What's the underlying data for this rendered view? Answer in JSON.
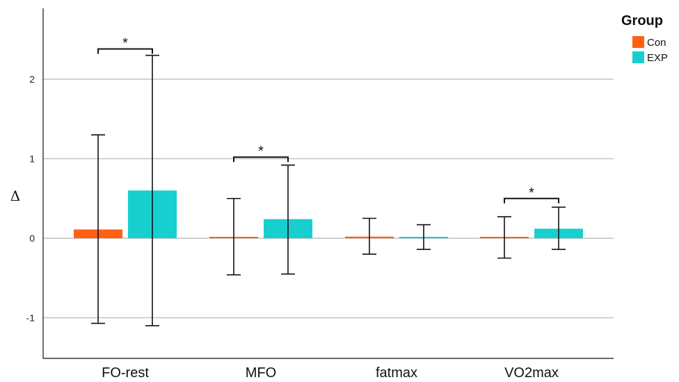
{
  "chart_data": {
    "type": "bar",
    "title": "",
    "xlabel": "",
    "ylabel": "Δ",
    "categories": [
      "FO-rest",
      "MFO",
      "fatmax",
      "VO2max"
    ],
    "ylim": [
      -1.5,
      2.85
    ],
    "yticks": [
      -1,
      0,
      1,
      2
    ],
    "grid": true,
    "legend": {
      "title": "Group",
      "position": "top-right"
    },
    "series": [
      {
        "name": "Con",
        "color": "#ff6016",
        "values": [
          0.11,
          0.01,
          0.02,
          0.0
        ],
        "err_low": [
          -1.07,
          -0.46,
          -0.2,
          -0.25
        ],
        "err_high": [
          1.3,
          0.5,
          0.25,
          0.27
        ]
      },
      {
        "name": "EXP",
        "color": "#17cfcf",
        "values": [
          0.6,
          0.24,
          0.01,
          0.12
        ],
        "err_low": [
          -1.1,
          -0.45,
          -0.14,
          -0.14
        ],
        "err_high": [
          2.3,
          0.92,
          0.17,
          0.39
        ]
      }
    ],
    "annotations": [
      {
        "category": "FO-rest",
        "label": "*",
        "y": 2.38
      },
      {
        "category": "MFO",
        "label": "*",
        "y": 1.02
      },
      {
        "category": "VO2max",
        "label": "*",
        "y": 0.5
      }
    ]
  }
}
